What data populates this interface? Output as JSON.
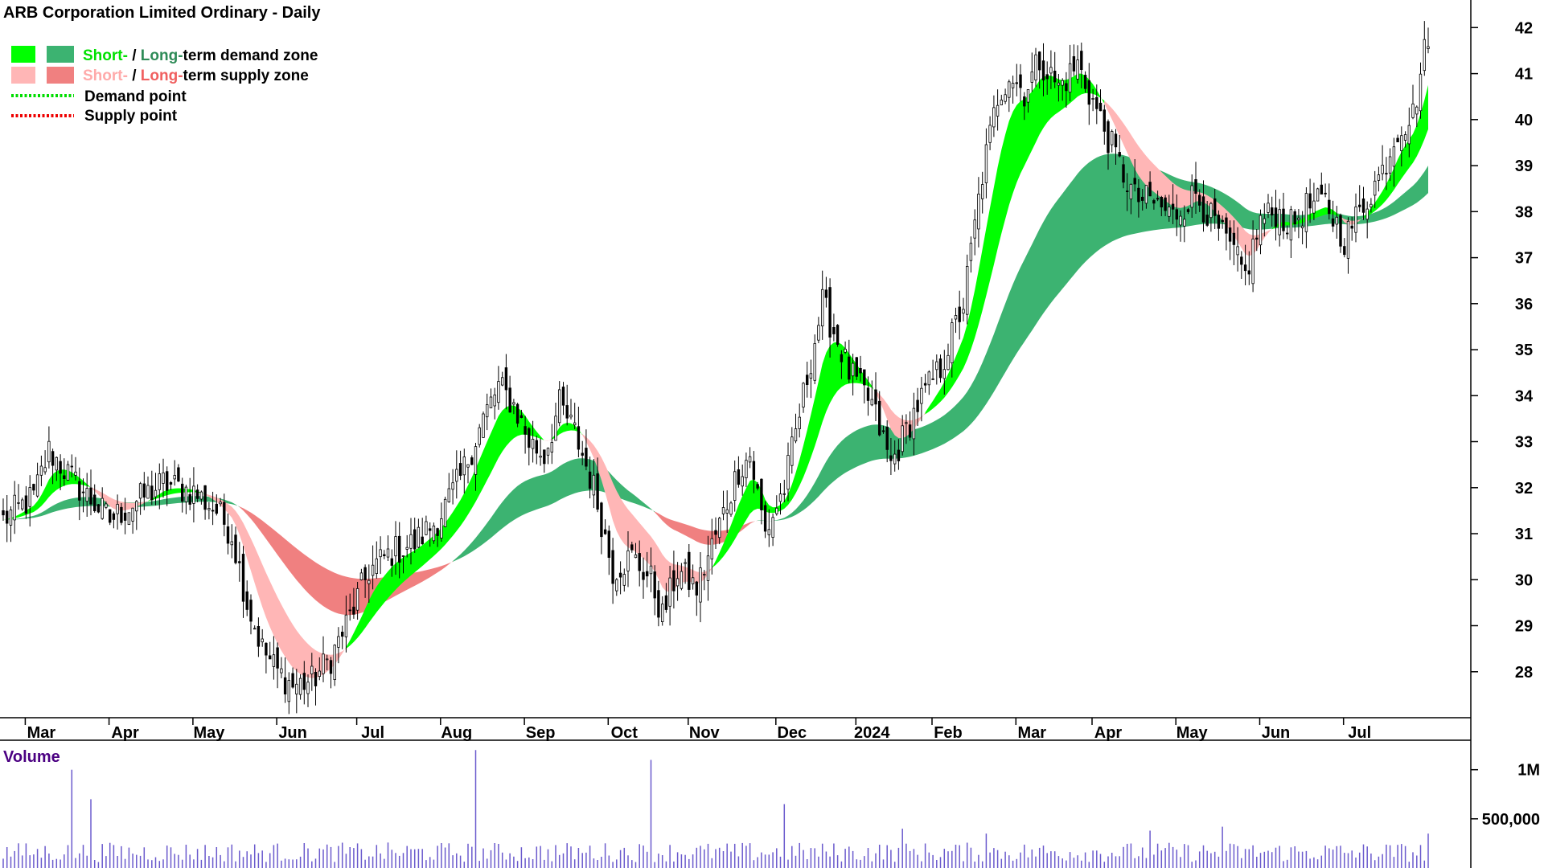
{
  "chart_data": {
    "type": "candlestick",
    "title": "ARB Corporation Limited Ordinary - Daily",
    "legend": [
      {
        "short_label": "Short-",
        "separator": " / ",
        "long_label": "Long-",
        "rest": "term demand zone",
        "short_color": "#00ff00",
        "long_color": "#3cb371",
        "label_colors": [
          "#00e000",
          "#2e8b57"
        ]
      },
      {
        "short_label": "Short-",
        "separator": " / ",
        "long_label": "Long-",
        "rest": "term supply zone",
        "short_color": "#ffb6b6",
        "long_color": "#f08080",
        "label_colors": [
          "#ffaaaa",
          "#f06060"
        ]
      },
      {
        "label": "Demand point",
        "color": "#00dd00",
        "style": "dotted"
      },
      {
        "label": "Supply point",
        "color": "#ee0000",
        "style": "dotted"
      }
    ],
    "y_axis": {
      "range": [
        27,
        42.6
      ],
      "ticks": [
        "28",
        "29",
        "30",
        "31",
        "32",
        "33",
        "34",
        "35",
        "36",
        "37",
        "38",
        "39",
        "40",
        "41",
        "42"
      ],
      "side": "right"
    },
    "x_axis": {
      "labels": [
        "Mar",
        "Apr",
        "May",
        "Jun",
        "Jul",
        "Aug",
        "Sep",
        "Oct",
        "Nov",
        "Dec",
        "2024",
        "Feb",
        "Mar",
        "Apr",
        "May",
        "Jun",
        "Jul"
      ],
      "label_index": [
        10,
        32,
        54,
        76,
        97,
        119,
        141,
        163,
        184,
        207,
        228,
        248,
        270,
        290,
        312,
        334,
        356
      ]
    },
    "n_bars": 375,
    "price_anchors": [
      [
        0,
        31.3
      ],
      [
        8,
        31.8
      ],
      [
        12,
        32.8
      ],
      [
        20,
        32.0
      ],
      [
        28,
        31.3
      ],
      [
        35,
        31.7
      ],
      [
        42,
        32.1
      ],
      [
        50,
        31.9
      ],
      [
        56,
        31.5
      ],
      [
        60,
        31.0
      ],
      [
        64,
        29.5
      ],
      [
        68,
        28.5
      ],
      [
        72,
        28.0
      ],
      [
        76,
        27.7
      ],
      [
        81,
        27.8
      ],
      [
        86,
        28.3
      ],
      [
        91,
        29.2
      ],
      [
        96,
        30.2
      ],
      [
        102,
        30.6
      ],
      [
        108,
        30.8
      ],
      [
        114,
        31.3
      ],
      [
        120,
        32.2
      ],
      [
        126,
        33.5
      ],
      [
        130,
        34.2
      ],
      [
        134,
        33.8
      ],
      [
        138,
        33.0
      ],
      [
        142,
        32.7
      ],
      [
        146,
        33.8
      ],
      [
        150,
        33.2
      ],
      [
        155,
        32.0
      ],
      [
        160,
        30.2
      ],
      [
        165,
        30.5
      ],
      [
        170,
        30.0
      ],
      [
        173,
        29.2
      ],
      [
        177,
        30.2
      ],
      [
        182,
        29.8
      ],
      [
        188,
        31.2
      ],
      [
        193,
        32.4
      ],
      [
        196,
        32.7
      ],
      [
        200,
        31.0
      ],
      [
        205,
        32.0
      ],
      [
        210,
        34.0
      ],
      [
        215,
        36.0
      ],
      [
        219,
        35.2
      ],
      [
        222,
        34.5
      ],
      [
        228,
        33.8
      ],
      [
        233,
        32.5
      ],
      [
        240,
        33.8
      ],
      [
        246,
        34.6
      ],
      [
        252,
        36.0
      ],
      [
        257,
        38.8
      ],
      [
        261,
        40.5
      ],
      [
        264,
        41.0
      ],
      [
        268,
        40.6
      ],
      [
        272,
        41.3
      ],
      [
        277,
        40.7
      ],
      [
        282,
        41.2
      ],
      [
        288,
        40.0
      ],
      [
        293,
        39.0
      ],
      [
        297,
        38.3
      ],
      [
        302,
        38.2
      ],
      [
        307,
        37.9
      ],
      [
        313,
        38.4
      ],
      [
        318,
        37.7
      ],
      [
        322,
        37.2
      ],
      [
        326,
        36.6
      ],
      [
        330,
        37.8
      ],
      [
        334,
        38.0
      ],
      [
        338,
        37.7
      ],
      [
        342,
        38.1
      ],
      [
        347,
        38.2
      ],
      [
        352,
        37.4
      ],
      [
        356,
        38.0
      ],
      [
        362,
        38.9
      ],
      [
        366,
        39.8
      ],
      [
        370,
        40.1
      ],
      [
        374,
        41.9
      ]
    ],
    "volume": {
      "label": "Volume",
      "ticks": [
        "1M",
        "500,000"
      ],
      "range": [
        0,
        1300000
      ]
    },
    "zone_paths": {
      "short_demand": [
        [
          0,
          31.0,
          31.5
        ],
        [
          12,
          31.5,
          32.0
        ],
        [
          24,
          31.5,
          31.9
        ],
        [
          36,
          31.7,
          32.1
        ],
        [
          48,
          31.6,
          31.9
        ],
        [
          56,
          31.6,
          31.8
        ]
      ],
      "long_supply_band": [
        [
          0,
          31.2,
          31.9
        ],
        [
          20,
          31.4,
          31.9
        ],
        [
          40,
          31.6,
          31.8
        ],
        [
          58,
          31.7,
          31.8
        ],
        [
          70,
          31.4,
          31.6
        ],
        [
          90,
          31.0,
          31.3
        ],
        [
          100,
          30.9,
          31.1
        ],
        [
          114,
          30.6,
          31.0
        ],
        [
          120,
          30.7,
          31.0
        ]
      ],
      "short_supply_band": [
        [
          60,
          31.4,
          31.6
        ],
        [
          66,
          30.0,
          30.6
        ],
        [
          72,
          29.2,
          29.9
        ],
        [
          80,
          28.8,
          29.2
        ],
        [
          86,
          28.6,
          29.0
        ],
        [
          90,
          28.9,
          29.0
        ]
      ]
    },
    "grid": false
  }
}
